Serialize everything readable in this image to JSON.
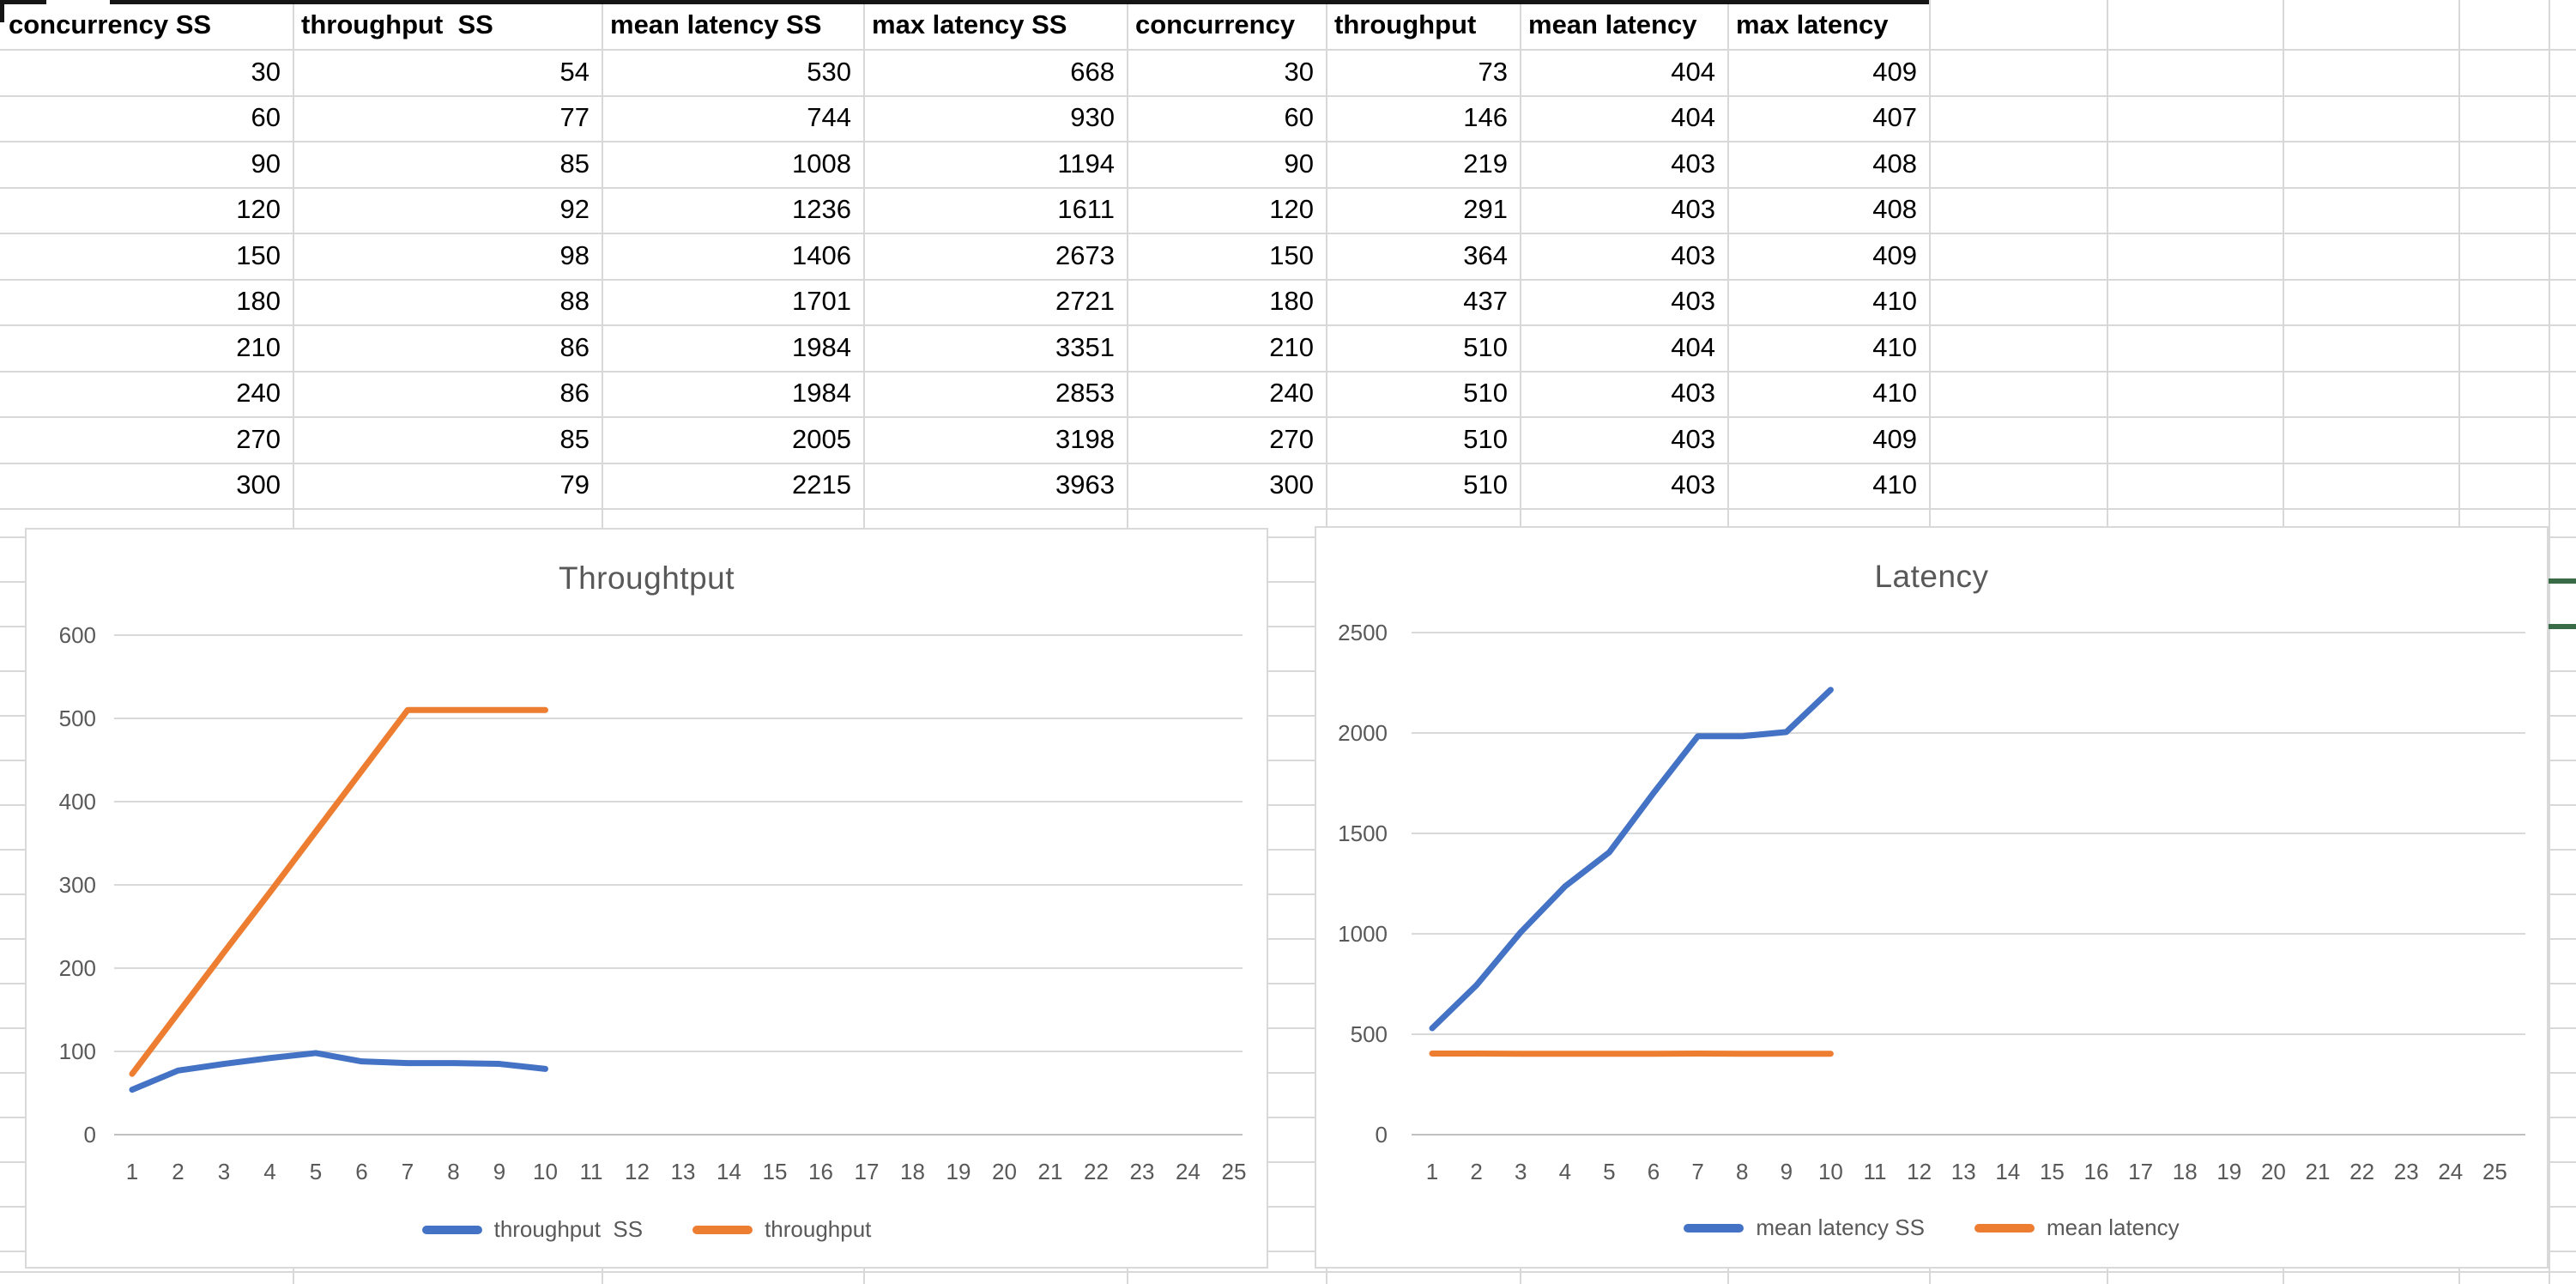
{
  "sheet": {
    "table": {
      "headers": [
        "concurrency SS",
        "throughput  SS",
        "mean latency SS",
        "max latency SS",
        "concurrency",
        "throughput",
        "mean latency",
        "max latency"
      ],
      "rows": [
        [
          30,
          54,
          530,
          668,
          30,
          73,
          404,
          409
        ],
        [
          60,
          77,
          744,
          930,
          60,
          146,
          404,
          407
        ],
        [
          90,
          85,
          1008,
          1194,
          90,
          219,
          403,
          408
        ],
        [
          120,
          92,
          1236,
          1611,
          120,
          291,
          403,
          408
        ],
        [
          150,
          98,
          1406,
          2673,
          150,
          364,
          403,
          409
        ],
        [
          180,
          88,
          1701,
          2721,
          180,
          437,
          403,
          410
        ],
        [
          210,
          86,
          1984,
          3351,
          210,
          510,
          404,
          410
        ],
        [
          240,
          86,
          1984,
          2853,
          240,
          510,
          403,
          410
        ],
        [
          270,
          85,
          2005,
          3198,
          270,
          510,
          403,
          409
        ],
        [
          300,
          79,
          2215,
          3963,
          300,
          510,
          403,
          410
        ]
      ]
    },
    "accent_green": "#3a6b47",
    "grid_color": "#d8d8d8"
  },
  "colors": {
    "series_blue": "#4472C4",
    "series_orange": "#ED7D31",
    "chart_grid": "#d9d9d9",
    "chart_axis": "#bfbfbf",
    "chart_text": "#595959"
  },
  "chart_data": [
    {
      "type": "line",
      "title": "Throughtput",
      "categories": [
        1,
        2,
        3,
        4,
        5,
        6,
        7,
        8,
        9,
        10,
        11,
        12,
        13,
        14,
        15,
        16,
        17,
        18,
        19,
        20,
        21,
        22,
        23,
        24,
        25
      ],
      "yticks": [
        0,
        100,
        200,
        300,
        400,
        500,
        600
      ],
      "ylim": [
        0,
        600
      ],
      "grid": true,
      "legend_position": "bottom",
      "xlabel": "",
      "ylabel": "",
      "series": [
        {
          "name": "throughput  SS",
          "color": "#4472C4",
          "values": [
            54,
            77,
            85,
            92,
            98,
            88,
            86,
            86,
            85,
            79
          ]
        },
        {
          "name": "throughput",
          "color": "#ED7D31",
          "values": [
            73,
            146,
            219,
            291,
            364,
            437,
            510,
            510,
            510,
            510
          ]
        }
      ]
    },
    {
      "type": "line",
      "title": "Latency",
      "categories": [
        1,
        2,
        3,
        4,
        5,
        6,
        7,
        8,
        9,
        10,
        11,
        12,
        13,
        14,
        15,
        16,
        17,
        18,
        19,
        20,
        21,
        22,
        23,
        24,
        25
      ],
      "yticks": [
        0,
        500,
        1000,
        1500,
        2000,
        2500
      ],
      "ylim": [
        0,
        2500
      ],
      "grid": true,
      "legend_position": "bottom",
      "xlabel": "",
      "ylabel": "",
      "series": [
        {
          "name": "mean latency SS",
          "color": "#4472C4",
          "values": [
            530,
            744,
            1008,
            1236,
            1406,
            1701,
            1984,
            1984,
            2005,
            2215
          ]
        },
        {
          "name": "mean latency",
          "color": "#ED7D31",
          "values": [
            404,
            404,
            403,
            403,
            403,
            403,
            404,
            403,
            403,
            403
          ]
        }
      ]
    }
  ]
}
